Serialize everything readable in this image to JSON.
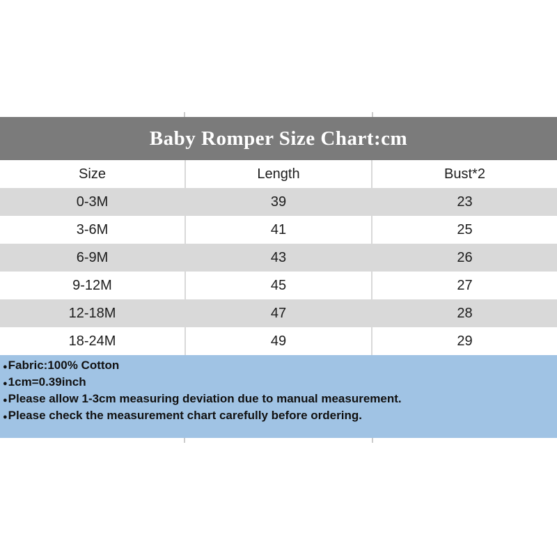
{
  "banner": {
    "title": "Baby Romper Size Chart:cm"
  },
  "chart_data": {
    "type": "table",
    "title": "Baby Romper Size Chart:cm",
    "columns": [
      "Size",
      "Length",
      "Bust*2"
    ],
    "rows": [
      [
        "0-3M",
        "39",
        "23"
      ],
      [
        "3-6M",
        "41",
        "25"
      ],
      [
        "6-9M",
        "43",
        "26"
      ],
      [
        "9-12M",
        "45",
        "27"
      ],
      [
        "12-18M",
        "47",
        "28"
      ],
      [
        "18-24M",
        "49",
        "29"
      ]
    ]
  },
  "notes": {
    "bullet": "●",
    "items": [
      "Fabric:100% Cotton",
      "1cm=0.39inch",
      "Please allow 1-3cm measuring deviation due to manual measurement.",
      "Please check the measurement chart carefully before ordering."
    ]
  },
  "colors": {
    "banner_bg": "#7b7b7b",
    "banner_text": "#ffffff",
    "row_stripe": "#d9d9d9",
    "row_white": "#ffffff",
    "notes_bg": "#a0c3e4",
    "text": "#1c1c1c"
  }
}
